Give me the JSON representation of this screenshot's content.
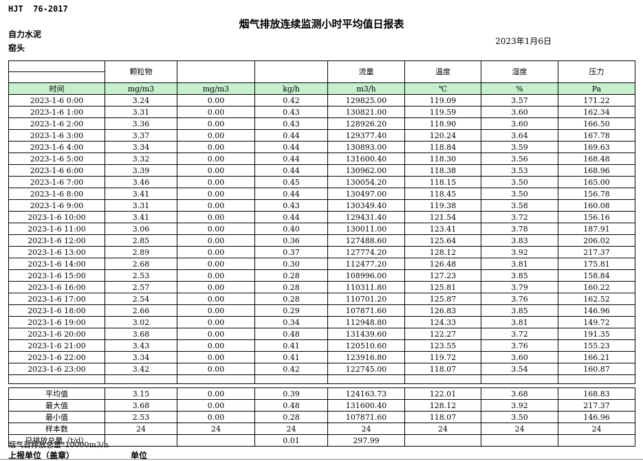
{
  "page": {
    "standard": "HJT  76-2017",
    "title": "烟气排放连续监测小时平均值日报表",
    "company": "自力水泥",
    "station": "窑头",
    "date": "2023年1月6日"
  },
  "colors": {
    "unit_row_green": "#C6EFCE",
    "border": "#000000"
  },
  "table": {
    "group_headers": [
      "",
      "颗粒物",
      "",
      "",
      "流量",
      "温度",
      "湿度",
      "压力"
    ],
    "unit_row": [
      "时间",
      "mg/m3",
      "mg/m3",
      "kg/h",
      "m3/h",
      "℃",
      "%",
      "Pa"
    ],
    "rows": [
      [
        "2023-1-6 0:00",
        "3.24",
        "0.00",
        "0.42",
        "129825.00",
        "119.09",
        "3.57",
        "171.22"
      ],
      [
        "2023-1-6 1:00",
        "3.31",
        "0.00",
        "0.43",
        "130821.00",
        "119.59",
        "3.60",
        "162.34"
      ],
      [
        "2023-1-6 2:00",
        "3.36",
        "0.00",
        "0.43",
        "128926.20",
        "118.90",
        "3.60",
        "166.50"
      ],
      [
        "2023-1-6 3:00",
        "3.37",
        "0.00",
        "0.44",
        "129377.40",
        "120.24",
        "3.64",
        "167.78"
      ],
      [
        "2023-1-6 4:00",
        "3.34",
        "0.00",
        "0.44",
        "130893.00",
        "118.84",
        "3.59",
        "169.63"
      ],
      [
        "2023-1-6 5:00",
        "3.32",
        "0.00",
        "0.44",
        "131600.40",
        "118.30",
        "3.56",
        "168.48"
      ],
      [
        "2023-1-6 6:00",
        "3.39",
        "0.00",
        "0.44",
        "130962.00",
        "118.38",
        "3.53",
        "168.96"
      ],
      [
        "2023-1-6 7:00",
        "3.46",
        "0.00",
        "0.45",
        "130054.20",
        "118.15",
        "3.50",
        "165.00"
      ],
      [
        "2023-1-6 8:00",
        "3.41",
        "0.00",
        "0.44",
        "130497.00",
        "118.45",
        "3.50",
        "156.78"
      ],
      [
        "2023-1-6 9:00",
        "3.31",
        "0.00",
        "0.43",
        "130349.40",
        "119.38",
        "3.58",
        "160.08"
      ],
      [
        "2023-1-6 10:00",
        "3.41",
        "0.00",
        "0.44",
        "129431.40",
        "121.54",
        "3.72",
        "156.16"
      ],
      [
        "2023-1-6 11:00",
        "3.06",
        "0.00",
        "0.40",
        "130011.00",
        "123.41",
        "3.78",
        "187.91"
      ],
      [
        "2023-1-6 12:00",
        "2.85",
        "0.00",
        "0.36",
        "127488.60",
        "125.64",
        "3.83",
        "206.02"
      ],
      [
        "2023-1-6 13:00",
        "2.89",
        "0.00",
        "0.37",
        "127774.20",
        "128.12",
        "3.92",
        "217.37"
      ],
      [
        "2023-1-6 14:00",
        "2.68",
        "0.00",
        "0.30",
        "112477.20",
        "126.48",
        "3.81",
        "175.81"
      ],
      [
        "2023-1-6 15:00",
        "2.53",
        "0.00",
        "0.28",
        "108996.00",
        "127.23",
        "3.85",
        "158.84"
      ],
      [
        "2023-1-6 16:00",
        "2.57",
        "0.00",
        "0.28",
        "110311.80",
        "125.81",
        "3.79",
        "160.22"
      ],
      [
        "2023-1-6 17:00",
        "2.54",
        "0.00",
        "0.28",
        "110701.20",
        "125.87",
        "3.76",
        "162.52"
      ],
      [
        "2023-1-6 18:00",
        "2.66",
        "0.00",
        "0.29",
        "107871.60",
        "126.83",
        "3.85",
        "146.96"
      ],
      [
        "2023-1-6 19:00",
        "3.02",
        "0.00",
        "0.34",
        "112948.80",
        "124.33",
        "3.81",
        "149.72"
      ],
      [
        "2023-1-6 20:00",
        "3.68",
        "0.00",
        "0.48",
        "131439.60",
        "122.27",
        "3.72",
        "191.35"
      ],
      [
        "2023-1-6 21:00",
        "3.43",
        "0.00",
        "0.41",
        "120510.60",
        "123.55",
        "3.76",
        "155.23"
      ],
      [
        "2023-1-6 22:00",
        "3.34",
        "0.00",
        "0.41",
        "123916.80",
        "119.72",
        "3.60",
        "166.21"
      ],
      [
        "2023-1-6 23:00",
        "3.42",
        "0.00",
        "0.42",
        "122745.00",
        "118.07",
        "3.54",
        "160.87"
      ]
    ],
    "summary_rows": [
      [
        "平均值",
        "3.15",
        "0.00",
        "0.39",
        "124163.73",
        "122.01",
        "3.68",
        "168.83"
      ],
      [
        "最大值",
        "3.68",
        "0.00",
        "0.48",
        "131600.40",
        "128.12",
        "3.92",
        "217.37"
      ],
      [
        "最小值",
        "2.53",
        "0.00",
        "0.28",
        "107871.60",
        "118.07",
        "3.50",
        "146.96"
      ],
      [
        "样本数",
        "24",
        "24",
        "24",
        "24",
        "24",
        "24",
        "24"
      ],
      [
        "日排放总量（t/d）",
        "",
        "",
        "0.01",
        "297.99",
        "",
        "",
        ""
      ]
    ]
  },
  "footer": {
    "note": "烟气日排放总量*10000m3/h",
    "report_unit_label": "上报单位（盖章）",
    "unit_label": "单位"
  }
}
